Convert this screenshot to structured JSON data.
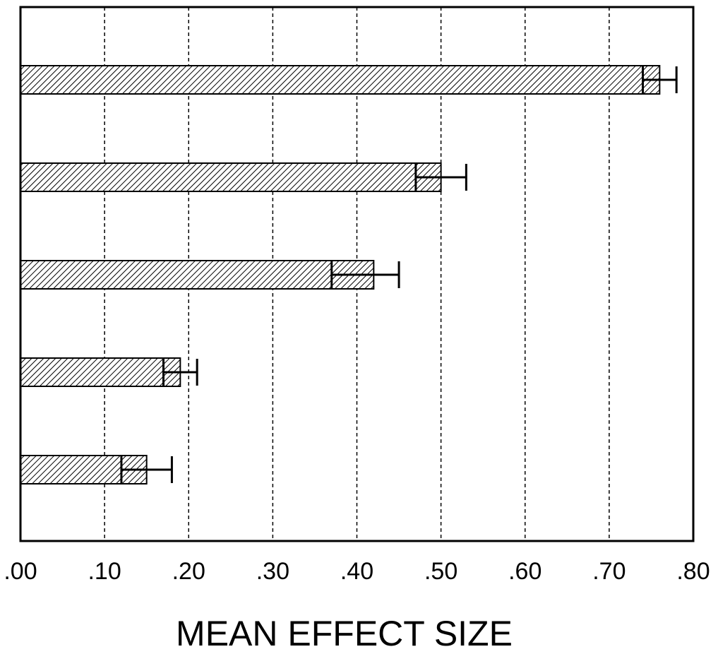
{
  "chart_data": {
    "type": "bar",
    "orientation": "horizontal",
    "title": "",
    "xlabel": "MEAN EFFECT SIZE",
    "ylabel": "",
    "xlim": [
      0,
      0.8
    ],
    "x_ticks": [
      ".00",
      ".10",
      ".20",
      ".30",
      ".40",
      ".50",
      ".60",
      ".70",
      ".80"
    ],
    "grid": "vertical dashed",
    "legend": "none",
    "bar_fill": "diagonal hatch",
    "series": [
      {
        "values": [
          0.76,
          0.5,
          0.42,
          0.19,
          0.15
        ],
        "error_low": [
          0.74,
          0.47,
          0.37,
          0.17,
          0.12
        ],
        "error_high": [
          0.78,
          0.53,
          0.45,
          0.21,
          0.18
        ]
      }
    ],
    "colors": {
      "hatch": "#000000",
      "frame": "#000000",
      "grid": "#000000"
    }
  }
}
